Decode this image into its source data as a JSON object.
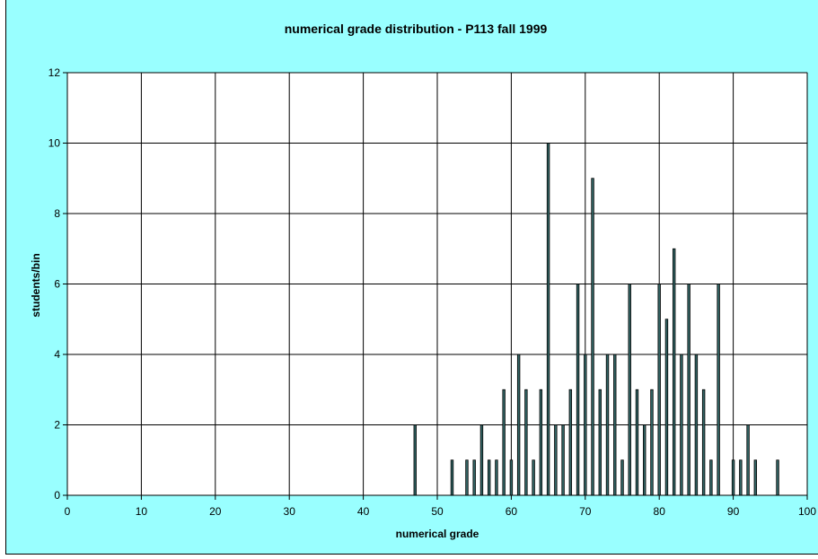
{
  "chart_data": {
    "type": "bar",
    "title": "numerical grade distribution - P113 fall 1999",
    "xlabel": "numerical grade",
    "ylabel": "students/bin",
    "xlim": [
      0,
      100
    ],
    "ylim": [
      0,
      12
    ],
    "x_ticks": [
      0,
      10,
      20,
      30,
      40,
      50,
      60,
      70,
      80,
      90,
      100
    ],
    "y_ticks": [
      0,
      2,
      4,
      6,
      8,
      10,
      12
    ],
    "x_tick_labels": [
      "0",
      "10",
      "20",
      "30",
      "40",
      "50",
      "60",
      "70",
      "80",
      "90",
      "100"
    ],
    "y_tick_labels": [
      "0",
      "2",
      "4",
      "6",
      "8",
      "10",
      "12"
    ],
    "grid": true,
    "legend": "none",
    "colors": {
      "background": "#99ffff",
      "plot_area": "#ffffff",
      "bar_fill": "#336666",
      "bar_stroke": "#000000",
      "grid": "#000000"
    },
    "x": [
      47,
      52,
      54,
      55,
      56,
      57,
      58,
      59,
      60,
      61,
      62,
      63,
      64,
      65,
      66,
      67,
      68,
      69,
      70,
      71,
      72,
      73,
      74,
      75,
      76,
      77,
      78,
      79,
      80,
      81,
      82,
      83,
      84,
      85,
      86,
      87,
      88,
      90,
      91,
      92,
      93,
      96
    ],
    "values": [
      2,
      1,
      1,
      1,
      2,
      1,
      1,
      3,
      1,
      4,
      3,
      1,
      3,
      10,
      2,
      2,
      3,
      6,
      4,
      9,
      3,
      4,
      4,
      1,
      6,
      3,
      2,
      3,
      6,
      5,
      7,
      4,
      6,
      4,
      3,
      1,
      6,
      1,
      1,
      2,
      1,
      1
    ]
  }
}
